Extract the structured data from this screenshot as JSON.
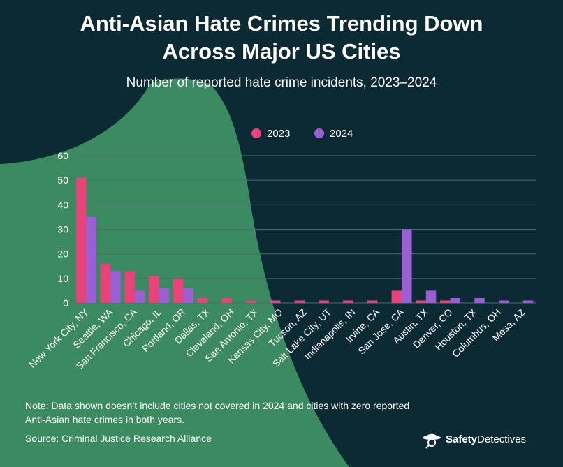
{
  "header": {
    "title_line1": "Anti-Asian Hate Crimes Trending Down",
    "title_line2": "Across Major US Cities",
    "subtitle": "Number of reported hate crime incidents, 2023–2024"
  },
  "colors": {
    "background": "#0c2a33",
    "background_green": "#3c8a62",
    "series_2023": "#e8437a",
    "series_2024": "#9a5fd2",
    "grid": "#4f6b70",
    "text": "#ffffff"
  },
  "chart_data": {
    "type": "bar",
    "categories": [
      "New York City, NY",
      "Seattle, WA",
      "San Francisco, CA",
      "Chicago, IL",
      "Portland, OR",
      "Dallas, TX",
      "Cleveland, OH",
      "San Antonio, TX",
      "Kansas City, MO",
      "Tucson, AZ",
      "Salt Lake City, UT",
      "Indianapolis, IN",
      "Irvine, CA",
      "San Jose, CA",
      "Austin, TX",
      "Denver, CO",
      "Houston, TX",
      "Columbus, OH",
      "Mesa, AZ"
    ],
    "series": [
      {
        "name": "2023",
        "values": [
          51,
          16,
          13,
          11,
          10,
          2,
          2,
          1,
          1,
          1,
          1,
          1,
          1,
          5,
          1,
          1,
          0,
          0,
          0
        ]
      },
      {
        "name": "2024",
        "values": [
          35,
          13,
          5,
          6,
          6,
          0,
          0,
          0,
          0,
          0,
          0,
          0,
          0,
          30,
          5,
          2,
          2,
          1,
          1
        ]
      }
    ],
    "yticks": [
      0,
      10,
      20,
      30,
      40,
      50,
      60
    ],
    "ylim": [
      0,
      60
    ],
    "grid": true,
    "legend_position": "top-center"
  },
  "footer": {
    "note_line1": "Note: Data shown doesn’t include cities not covered in 2024 and cities with zero reported",
    "note_line2": "Anti-Asian hate crimes in both years.",
    "source": "Source: Criminal Justice Research Alliance",
    "brand_bold": "Safety",
    "brand_regular": "Detectives"
  }
}
